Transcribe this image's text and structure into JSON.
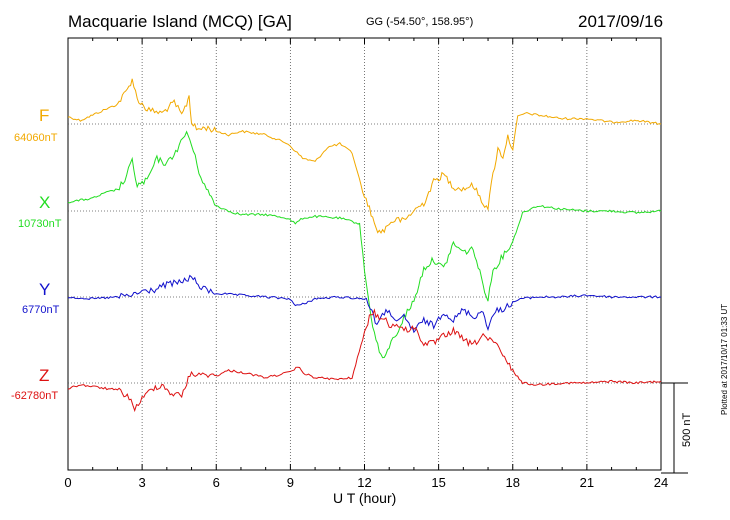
{
  "header": {
    "title": "Macquarie Island (MCQ)  [GA]",
    "coords": "GG (-54.50°, 158.95°)",
    "date": "2017/09/16"
  },
  "footer": {
    "plotted": "Plotted at 2017/10/17 01:33 UT"
  },
  "chart_data": {
    "type": "line",
    "xlabel": "U T (hour)",
    "xlim": [
      0,
      24
    ],
    "xticks": [
      0,
      3,
      6,
      9,
      12,
      15,
      18,
      21,
      24
    ],
    "grid": true,
    "scale_bar": {
      "label": "500 nT",
      "value_nT": 500
    },
    "series": [
      {
        "name": "F",
        "baseline": "64060nT",
        "color": "#f2a900",
        "baseline_value": 64060,
        "x": [
          0,
          0.5,
          1,
          1.5,
          2,
          2.4,
          2.6,
          2.8,
          3.2,
          3.8,
          4.3,
          4.6,
          4.8,
          4.9,
          5.0,
          5.2,
          5.6,
          6.0,
          6.5,
          7,
          8,
          8.9,
          9.2,
          9.5,
          10,
          10.5,
          11,
          11.5,
          12.0,
          12.2,
          12.4,
          12.6,
          12.8,
          13.0,
          13.3,
          13.6,
          14.0,
          14.4,
          14.8,
          15.2,
          15.6,
          16.0,
          16.4,
          16.8,
          17.0,
          17.2,
          17.4,
          17.6,
          17.8,
          18.0,
          18.2,
          18.5,
          19,
          20,
          21,
          22,
          23,
          24
        ],
        "y": [
          64100,
          64080,
          64110,
          64140,
          64170,
          64250,
          64310,
          64200,
          64140,
          64120,
          64180,
          64110,
          64170,
          64220,
          64070,
          64030,
          64040,
          64020,
          64000,
          64020,
          64000,
          63950,
          63910,
          63870,
          63850,
          63930,
          63950,
          63900,
          63650,
          63600,
          63500,
          63460,
          63470,
          63510,
          63530,
          63520,
          63580,
          63620,
          63740,
          63780,
          63710,
          63700,
          63720,
          63620,
          63600,
          63780,
          63920,
          63880,
          63990,
          63920,
          64100,
          64120,
          64110,
          64090,
          64090,
          64070,
          64080,
          64060
        ]
      },
      {
        "name": "X",
        "baseline": "10730nT",
        "color": "#22dd22",
        "baseline_value": 10730,
        "x": [
          0,
          0.5,
          1,
          1.5,
          2,
          2.3,
          2.6,
          2.8,
          3.2,
          3.6,
          4.0,
          4.5,
          4.8,
          5.0,
          5.3,
          5.6,
          6.0,
          6.5,
          7,
          8,
          8.9,
          9.2,
          9.5,
          10,
          11,
          11.8,
          12.0,
          12.2,
          12.4,
          12.6,
          12.8,
          13.0,
          13.3,
          13.6,
          14.0,
          14.4,
          14.8,
          15.2,
          15.6,
          16.0,
          16.4,
          16.8,
          17.0,
          17.2,
          17.6,
          18.0,
          18.4,
          19,
          20,
          21,
          22,
          23,
          24
        ],
        "y": [
          10780,
          10790,
          10800,
          10830,
          10850,
          10900,
          11010,
          10870,
          10900,
          11020,
          10990,
          11090,
          11170,
          11100,
          10950,
          10850,
          10760,
          10730,
          10710,
          10710,
          10690,
          10660,
          10690,
          10700,
          10690,
          10660,
          10400,
          10200,
          10050,
          9950,
          9900,
          9980,
          10050,
          10140,
          10230,
          10410,
          10460,
          10410,
          10550,
          10500,
          10520,
          10320,
          10240,
          10400,
          10480,
          10560,
          10720,
          10760,
          10740,
          10730,
          10730,
          10720,
          10730
        ]
      },
      {
        "name": "Y",
        "baseline": "6770nT",
        "color": "#1111cc",
        "baseline_value": 6770,
        "x": [
          0,
          1,
          2,
          2.6,
          3.0,
          3.5,
          4.0,
          4.5,
          5.0,
          5.4,
          6.0,
          7,
          8,
          9.0,
          9.2,
          9.5,
          10,
          11,
          12.0,
          12.3,
          12.5,
          12.8,
          13.0,
          13.3,
          13.6,
          14.0,
          14.4,
          14.8,
          15.2,
          15.6,
          16.0,
          16.4,
          16.8,
          17.0,
          17.3,
          17.7,
          18.0,
          18.3,
          19,
          20,
          21,
          22,
          23,
          24
        ],
        "y": [
          6770,
          6760,
          6770,
          6780,
          6800,
          6810,
          6840,
          6850,
          6880,
          6820,
          6790,
          6780,
          6770,
          6760,
          6720,
          6730,
          6760,
          6770,
          6760,
          6700,
          6610,
          6680,
          6700,
          6620,
          6660,
          6580,
          6640,
          6610,
          6690,
          6640,
          6700,
          6660,
          6690,
          6600,
          6690,
          6710,
          6740,
          6760,
          6770,
          6770,
          6780,
          6770,
          6770,
          6770
        ]
      },
      {
        "name": "Z",
        "baseline": "-62780nT",
        "color": "#dd1111",
        "baseline_value": -62780,
        "x": [
          0,
          0.5,
          1,
          1.5,
          2,
          2.4,
          2.7,
          3.0,
          3.4,
          3.8,
          4.2,
          4.6,
          4.8,
          5.0,
          5.3,
          5.6,
          6.0,
          6.5,
          7,
          8,
          9,
          9.3,
          9.6,
          10,
          11,
          11.5,
          12.0,
          12.2,
          12.4,
          12.6,
          12.8,
          13.0,
          13.3,
          13.6,
          14.0,
          14.4,
          14.8,
          15.2,
          15.6,
          16.0,
          16.4,
          16.8,
          17.0,
          17.3,
          17.6,
          18.0,
          18.4,
          19,
          20,
          21,
          22,
          23,
          24
        ],
        "y": [
          -62810,
          -62790,
          -62800,
          -62810,
          -62820,
          -62850,
          -62920,
          -62870,
          -62810,
          -62790,
          -62840,
          -62850,
          -62780,
          -62720,
          -62740,
          -62730,
          -62740,
          -62710,
          -62720,
          -62750,
          -62720,
          -62690,
          -62730,
          -62750,
          -62760,
          -62750,
          -62500,
          -62410,
          -62390,
          -62420,
          -62410,
          -62470,
          -62450,
          -62490,
          -62470,
          -62560,
          -62560,
          -62520,
          -62490,
          -62540,
          -62570,
          -62510,
          -62540,
          -62560,
          -62630,
          -62710,
          -62780,
          -62790,
          -62780,
          -62780,
          -62770,
          -62780,
          -62770
        ]
      }
    ]
  }
}
